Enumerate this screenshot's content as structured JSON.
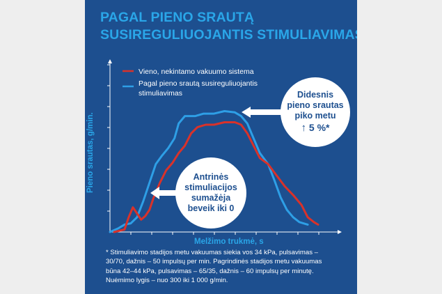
{
  "title": {
    "line1": "PAGAL PIENO SRAUTĄ",
    "line2": "SUSIREGULIUOJANTIS STIMULIAVIMAS"
  },
  "colors": {
    "panel": "#1d4f8f",
    "accent": "#2aa6e8",
    "red_series": "#d9322a",
    "blue_series": "#2e9fe6"
  },
  "callouts": {
    "peak": {
      "line1": "Didesnis",
      "line2": "pieno srautas",
      "line3": "piko metu",
      "value": "5 %*"
    },
    "secondary": {
      "line1": "Antrinės",
      "line2": "stimuliacijos",
      "line3": "sumažėja",
      "line4": "beveik iki 0"
    }
  },
  "footnote": {
    "line1": "* Stimuliavimo stadijos metu vakuumas siekia vos 34 kPa, pulsavimas –",
    "line2": "30/70, dažnis – 50 impulsų per min. Pagrindinės stadijos metu vakuumas",
    "line3": "būna 42–44 kPa, pulsavimas – 65/35, dažnis – 60 impulsų per minutę.",
    "line4": "Nuėmimo lygis – nuo 300 iki 1 000 g/min."
  },
  "chart_data": {
    "type": "line",
    "xlabel": "Melžimo trukmė, s",
    "ylabel": "Pieno srautas, g/min.",
    "grid": false,
    "legend_position": "top-left",
    "xlim": [
      0,
      100
    ],
    "ylim": [
      0,
      100
    ],
    "series": [
      {
        "name": "Vieno, nekintamo vakuumo sistema",
        "color": "#d9322a",
        "points": [
          [
            2,
            0
          ],
          [
            7,
            2
          ],
          [
            9,
            12
          ],
          [
            11,
            20
          ],
          [
            13,
            15
          ],
          [
            15,
            10
          ],
          [
            17,
            13
          ],
          [
            19,
            18
          ],
          [
            21,
            28
          ],
          [
            24,
            40
          ],
          [
            27,
            50
          ],
          [
            30,
            56
          ],
          [
            33,
            64
          ],
          [
            36,
            70
          ],
          [
            39,
            80
          ],
          [
            42,
            85
          ],
          [
            46,
            87
          ],
          [
            50,
            87
          ],
          [
            55,
            89
          ],
          [
            60,
            89
          ],
          [
            63,
            87
          ],
          [
            66,
            80
          ],
          [
            69,
            70
          ],
          [
            72,
            60
          ],
          [
            76,
            55
          ],
          [
            80,
            46
          ],
          [
            84,
            37
          ],
          [
            88,
            30
          ],
          [
            92,
            22
          ],
          [
            95,
            12
          ],
          [
            98,
            8
          ],
          [
            100,
            6
          ]
        ]
      },
      {
        "name": "Pagal pieno srautą susireguliuojantis stimuliavimas",
        "color": "#2e9fe6",
        "points": [
          [
            0,
            0
          ],
          [
            4,
            3
          ],
          [
            7,
            6
          ],
          [
            10,
            7
          ],
          [
            13,
            12
          ],
          [
            16,
            25
          ],
          [
            19,
            40
          ],
          [
            22,
            55
          ],
          [
            25,
            62
          ],
          [
            28,
            68
          ],
          [
            31,
            76
          ],
          [
            33,
            88
          ],
          [
            36,
            94
          ],
          [
            41,
            94
          ],
          [
            45,
            96
          ],
          [
            50,
            96
          ],
          [
            55,
            98
          ],
          [
            60,
            97
          ],
          [
            63,
            94
          ],
          [
            66,
            88
          ],
          [
            69,
            76
          ],
          [
            72,
            64
          ],
          [
            76,
            55
          ],
          [
            79,
            42
          ],
          [
            82,
            28
          ],
          [
            85,
            18
          ],
          [
            88,
            12
          ],
          [
            91,
            8
          ],
          [
            95,
            6
          ]
        ]
      }
    ]
  }
}
